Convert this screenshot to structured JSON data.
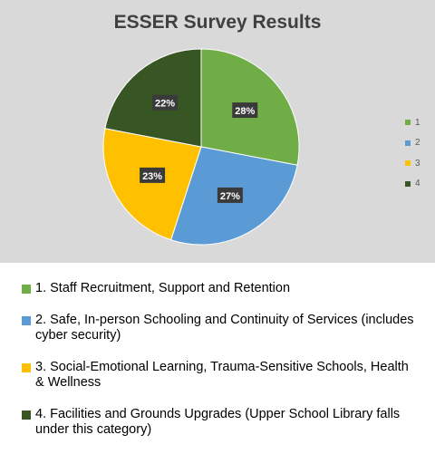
{
  "chart_data": {
    "type": "pie",
    "title": "ESSER Survey Results",
    "categories": [
      "1",
      "2",
      "3",
      "4"
    ],
    "values": [
      28,
      27,
      23,
      22
    ],
    "labels": [
      "28%",
      "27%",
      "23%",
      "22%"
    ],
    "colors": [
      "#70ad47",
      "#5b9bd5",
      "#ffc000",
      "#375623"
    ],
    "legend_position": "right",
    "start_angle": "top, clockwise"
  },
  "category_legend": [
    {
      "swatch": "#70ad47",
      "text": "1. Staff Recruitment, Support and Retention"
    },
    {
      "swatch": "#5b9bd5",
      "text": "2. Safe, In-person Schooling and Continuity of Services (includes cyber security)"
    },
    {
      "swatch": "#ffc000",
      "text": "3. Social-Emotional Learning, Trauma-Sensitive Schools, Health & Wellness"
    },
    {
      "swatch": "#375623",
      "text": "4. Facilities and Grounds Upgrades (Upper School Library falls under this category)"
    }
  ]
}
